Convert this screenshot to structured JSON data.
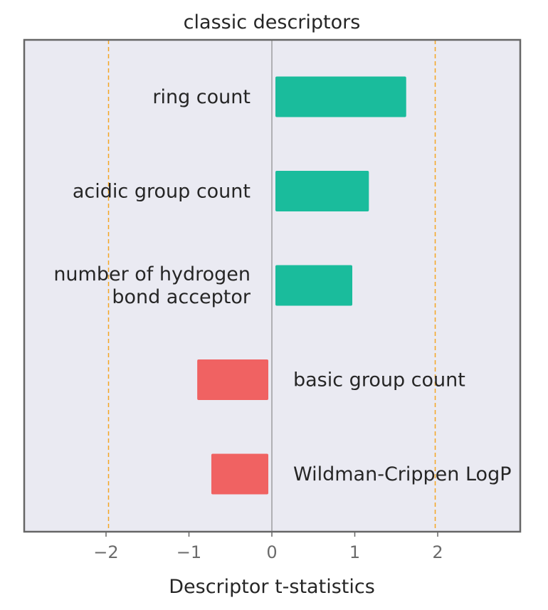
{
  "chart_data": {
    "type": "bar",
    "orientation": "horizontal",
    "title": "classic descriptors",
    "xlabel": "Descriptor t-statistics",
    "ylabel": "",
    "xlim": [
      -3,
      3
    ],
    "xticks": [
      -2,
      -1,
      0,
      1,
      2
    ],
    "xtick_labels": [
      "−2",
      "−1",
      "0",
      "1",
      "2"
    ],
    "reference_lines": [
      -1.97,
      1.97
    ],
    "categories": [
      [
        "ring count"
      ],
      [
        "acidic group count"
      ],
      [
        "number of hydrogen",
        "bond acceptor"
      ],
      [
        "basic group count"
      ],
      [
        "Wildman-Crippen LogP"
      ]
    ],
    "values": [
      1.62,
      1.17,
      0.97,
      -0.9,
      -0.73
    ],
    "colors": {
      "positive": "#1abc9c",
      "negative": "#f06262",
      "reference": "#f5a623",
      "background": "#eaeaf2",
      "zero_line": "#8a8a8a",
      "frame": "#666666"
    },
    "grid": false,
    "legend": "none"
  }
}
